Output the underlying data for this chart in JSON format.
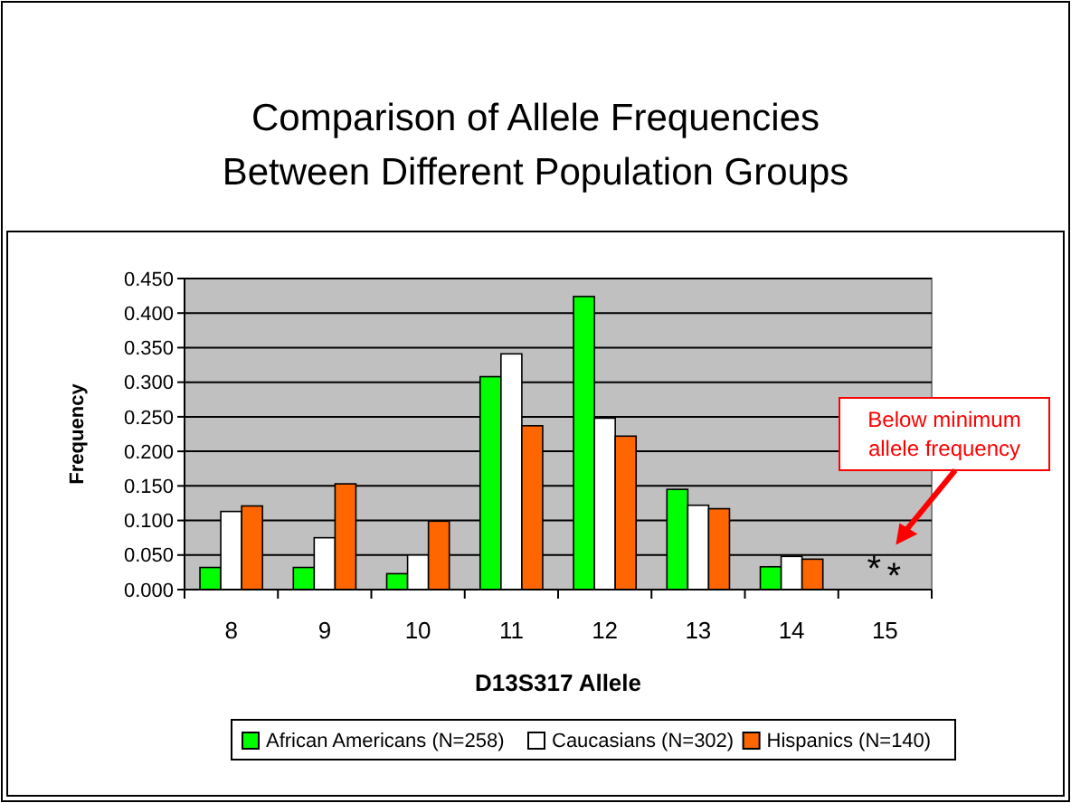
{
  "chart_data": {
    "type": "bar",
    "title": "Comparison of Allele Frequencies Between Different Population Groups",
    "xlabel": "D13S317 Allele",
    "ylabel": "Frequency",
    "categories": [
      "8",
      "9",
      "10",
      "11",
      "12",
      "13",
      "14",
      "15"
    ],
    "series": [
      {
        "name": "African Americans (N=258)",
        "color": "#00ff00",
        "values": [
          0.032,
          0.032,
          0.023,
          0.308,
          0.424,
          0.145,
          0.033,
          null
        ]
      },
      {
        "name": "Caucasians (N=302)",
        "color": "#ffffff",
        "values": [
          0.113,
          0.075,
          0.05,
          0.341,
          0.248,
          0.122,
          0.048,
          null
        ]
      },
      {
        "name": "Hispanics (N=140)",
        "color": "#ff6600",
        "values": [
          0.121,
          0.153,
          0.099,
          0.237,
          0.222,
          0.117,
          0.044,
          null
        ]
      }
    ],
    "ylim": [
      0,
      0.45
    ],
    "yticks": [
      {
        "value": 0,
        "label": "0.000"
      },
      {
        "value": 0.05,
        "label": "0.050"
      },
      {
        "value": 0.1,
        "label": "0.100"
      },
      {
        "value": 0.15,
        "label": "0.150"
      },
      {
        "value": 0.2,
        "label": "0.200"
      },
      {
        "value": 0.25,
        "label": "0.250"
      },
      {
        "value": 0.3,
        "label": "0.300"
      },
      {
        "value": 0.35,
        "label": "0.350"
      },
      {
        "value": 0.4,
        "label": "0.400"
      },
      {
        "value": 0.45,
        "label": "0.450"
      }
    ],
    "grid": "y",
    "legend": "bottom",
    "annotations": [
      "Below minimum allele frequency",
      "*",
      "*"
    ]
  }
}
